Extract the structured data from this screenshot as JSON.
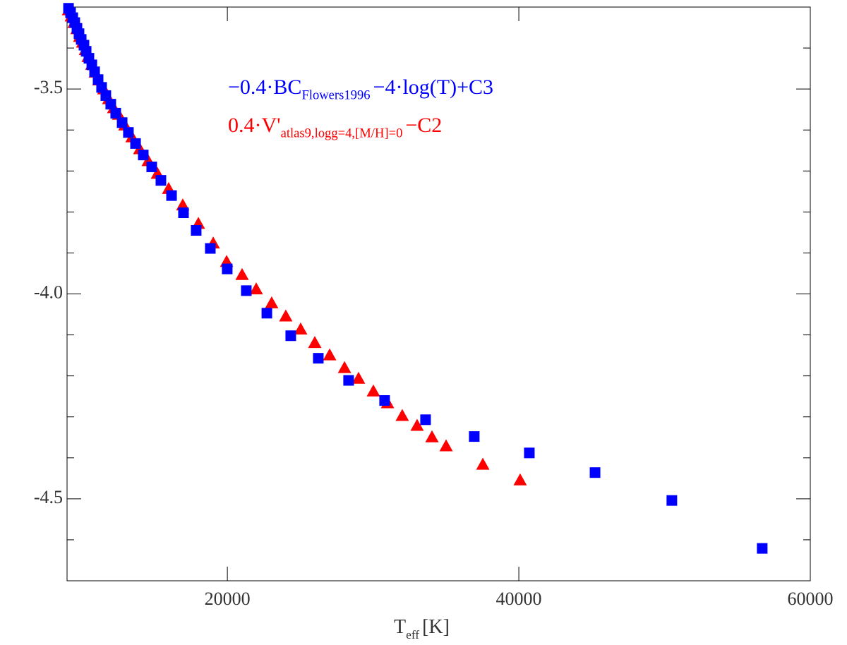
{
  "chart_data": {
    "type": "scatter",
    "xlabel": {
      "main": "T",
      "sub": "eff",
      "post": "[K]"
    },
    "xlim": [
      9000,
      60000
    ],
    "xticks": [
      20000,
      40000,
      60000
    ],
    "ylim": [
      -4.7,
      -3.3
    ],
    "yticks": [
      -3.5,
      {
        "value": -4.0,
        "label": "-4.0"
      },
      -4.5
    ],
    "yticks_minor": [
      -3.4,
      -3.6,
      -3.7,
      -3.8,
      -3.9,
      -4.1,
      -4.2,
      -4.3,
      -4.4,
      -4.6
    ],
    "series": [
      {
        "label": {
          "main": "0.4·V'",
          "sub": "atlas9,logg=4,[M/H]=0",
          "post": "−C2"
        },
        "color": "#ff0000",
        "marker": "triangle",
        "x": [
          9100,
          9290,
          9480,
          9680,
          9870,
          10070,
          10260,
          10450,
          10700,
          10940,
          11180,
          11520,
          11860,
          12200,
          12540,
          12970,
          13460,
          13990,
          14570,
          15200,
          15970,
          16940,
          18010,
          19030,
          19950,
          21010,
          21980,
          23040,
          24010,
          25030,
          26000,
          27020,
          28040,
          29000,
          30020,
          30990,
          32000,
          33020,
          34040,
          35010,
          37530,
          40090
        ],
        "values": [
          -3.308,
          -3.323,
          -3.339,
          -3.354,
          -3.373,
          -3.387,
          -3.405,
          -3.422,
          -3.441,
          -3.46,
          -3.479,
          -3.501,
          -3.525,
          -3.547,
          -3.563,
          -3.589,
          -3.618,
          -3.647,
          -3.676,
          -3.707,
          -3.744,
          -3.784,
          -3.829,
          -3.877,
          -3.922,
          -3.954,
          -3.989,
          -4.023,
          -4.055,
          -4.087,
          -4.12,
          -4.15,
          -4.181,
          -4.207,
          -4.238,
          -4.267,
          -4.298,
          -4.322,
          -4.35,
          -4.372,
          -4.417,
          -4.455
        ]
      },
      {
        "label": {
          "main": "−0.4·BC",
          "sub": "Flowers1996",
          "post": "−4·log(T)+C3"
        },
        "color": "#0000ff",
        "marker": "square",
        "x": [
          9100,
          9240,
          9390,
          9530,
          9680,
          9820,
          9970,
          10160,
          10310,
          10500,
          10700,
          10890,
          11130,
          11370,
          11660,
          12000,
          12340,
          12780,
          13210,
          13700,
          14230,
          14810,
          15440,
          16170,
          16990,
          17860,
          18830,
          19990,
          21300,
          22710,
          24350,
          26240,
          28320,
          30790,
          33600,
          36940,
          40720,
          45230,
          50500,
          56700
        ],
        "values": [
          -3.303,
          -3.314,
          -3.326,
          -3.338,
          -3.352,
          -3.365,
          -3.379,
          -3.393,
          -3.408,
          -3.425,
          -3.441,
          -3.458,
          -3.477,
          -3.496,
          -3.516,
          -3.537,
          -3.559,
          -3.582,
          -3.606,
          -3.633,
          -3.661,
          -3.69,
          -3.723,
          -3.76,
          -3.802,
          -3.845,
          -3.889,
          -3.939,
          -3.992,
          -4.047,
          -4.102,
          -4.157,
          -4.211,
          -4.26,
          -4.307,
          -4.348,
          -4.388,
          -4.436,
          -4.504,
          -4.621
        ]
      }
    ]
  }
}
